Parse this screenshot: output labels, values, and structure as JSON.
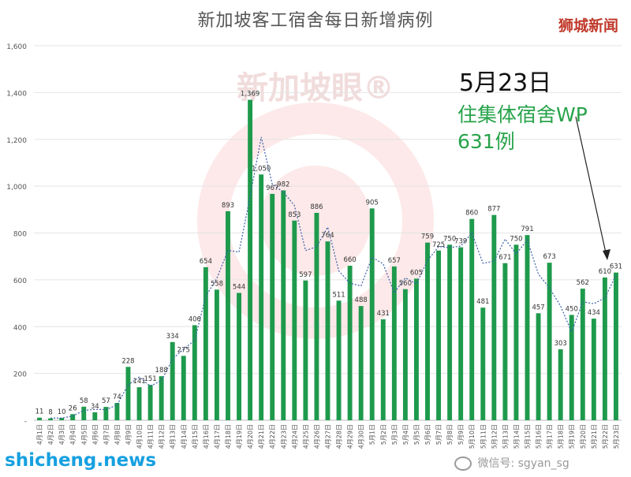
{
  "chart_data": {
    "type": "bar",
    "title": "新加坡客工宿舍每日新增病例",
    "categories": [
      "4月1日",
      "4月2日",
      "4月3日",
      "4月4日",
      "4月5日",
      "4月6日",
      "4月7日",
      "4月8日",
      "4月9日",
      "4月10日",
      "4月11日",
      "4月12日",
      "4月13日",
      "4月14日",
      "4月15日",
      "4月16日",
      "4月17日",
      "4月18日",
      "4月19日",
      "4月20日",
      "4月21日",
      "4月22日",
      "4月23日",
      "4月24日",
      "4月25日",
      "4月26日",
      "4月27日",
      "4月28日",
      "4月29日",
      "4月30日",
      "5月1日",
      "5月2日",
      "5月3日",
      "5月4日",
      "5月5日",
      "5月6日",
      "5月7日",
      "5月8日",
      "5月9日",
      "5月10日",
      "5月11日",
      "5月12日",
      "5月13日",
      "5月14日",
      "5月15日",
      "5月16日",
      "5月17日",
      "5月18日",
      "5月19日",
      "5月20日",
      "5月21日",
      "5月22日",
      "5月23日"
    ],
    "values": [
      11,
      8,
      10,
      26,
      58,
      34,
      57,
      74,
      228,
      141,
      151,
      188,
      334,
      275,
      406,
      654,
      558,
      893,
      544,
      1369,
      1050,
      967,
      982,
      853,
      597,
      886,
      764,
      511,
      660,
      488,
      905,
      431,
      657,
      560,
      605,
      759,
      725,
      750,
      739,
      860,
      481,
      877,
      671,
      750,
      791,
      457,
      673,
      303,
      450,
      562,
      434,
      610,
      631
    ],
    "value_labels": [
      "11",
      "8",
      "10",
      "26",
      "58",
      "34",
      "57",
      "74",
      "228",
      "141",
      "151",
      "188",
      "334",
      "275",
      "406",
      "654",
      "558",
      "893",
      "544",
      "1,369",
      "1,050",
      "967",
      "982",
      "853",
      "597",
      "886",
      "764",
      "511",
      "660",
      "488",
      "905",
      "431",
      "657",
      "560",
      "605",
      "759",
      "725",
      "750",
      "739",
      "860",
      "481",
      "877",
      "671",
      "750",
      "791",
      "457",
      "673",
      "303",
      "450",
      "562",
      "434",
      "610",
      "631"
    ],
    "trend": {
      "style": "dotted",
      "type": "moving-average",
      "color": "#3a5fa8"
    },
    "ylim": [
      0,
      1600
    ],
    "yticks": [
      0,
      200,
      400,
      600,
      800,
      1000,
      1200,
      1400,
      1600
    ],
    "ytick_labels": [
      "-",
      "200",
      "400",
      "600",
      "800",
      "1,000",
      "1,200",
      "1,400",
      "1,600"
    ],
    "xlabel": "",
    "ylabel": "",
    "grid": true,
    "bar_color": "#1e9a4c"
  },
  "badge": "狮城新闻",
  "callout": {
    "date": "5月23日",
    "line1": "住集体宿舍WP",
    "line2": "631例"
  },
  "watermark": {
    "background": "新加坡眼®",
    "site": "shicheng.news",
    "wechat": "微信号: sgyan_sg"
  }
}
